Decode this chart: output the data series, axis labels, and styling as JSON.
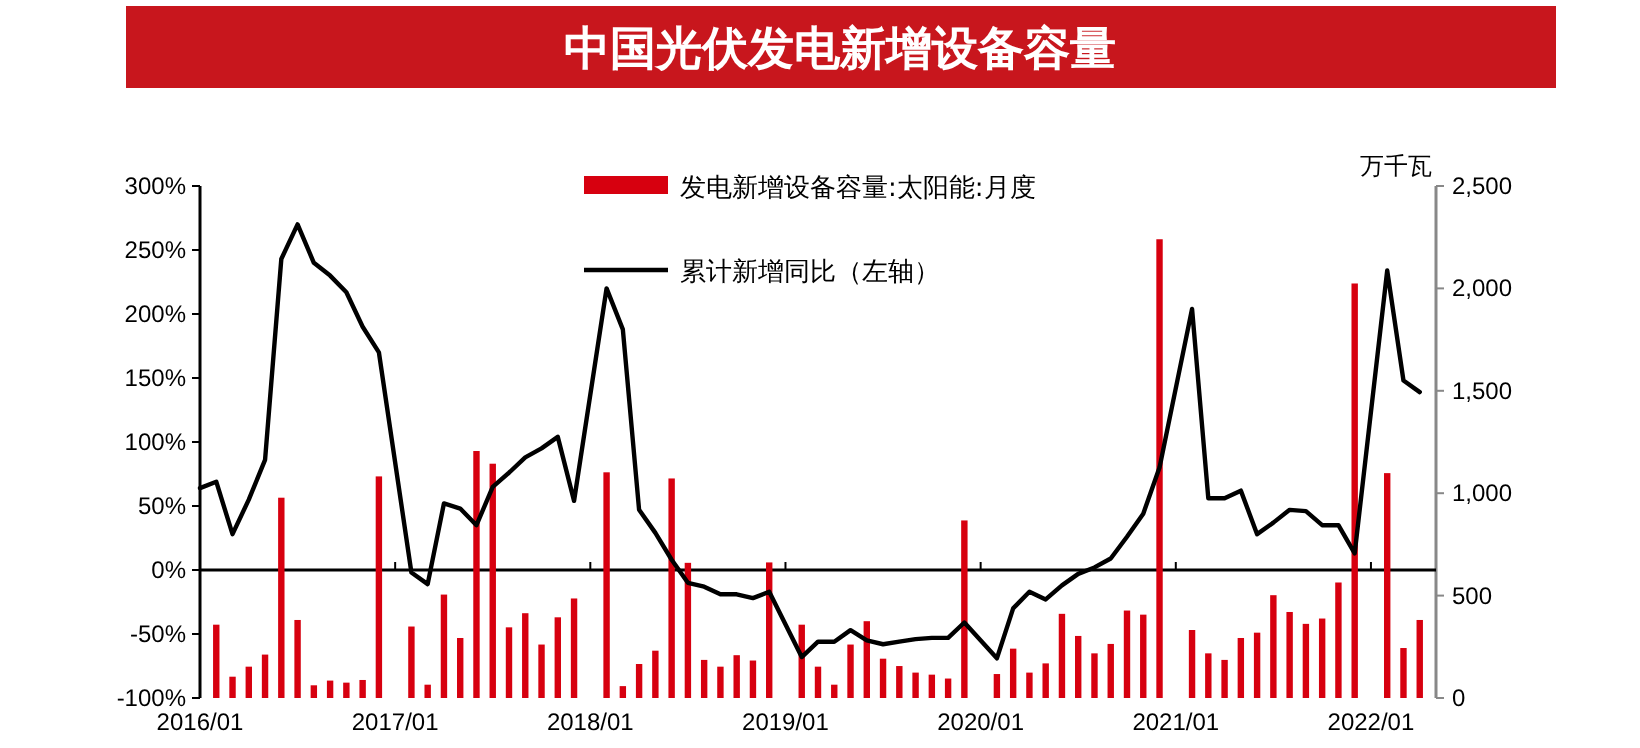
{
  "chart_data": {
    "type": "bar",
    "title": "中国光伏发电新增设备容量",
    "y2label": "万千瓦",
    "legend": "top",
    "xlim": [
      "2016-01",
      "2022-05"
    ],
    "xticks": [
      {
        "value": "2016-01",
        "label": "2016/01"
      },
      {
        "value": "2017-01",
        "label": "2017/01"
      },
      {
        "value": "2018-01",
        "label": "2018/01"
      },
      {
        "value": "2019-01",
        "label": "2019/01"
      },
      {
        "value": "2020-01",
        "label": "2020/01"
      },
      {
        "value": "2021-01",
        "label": "2021/01"
      },
      {
        "value": "2022-01",
        "label": "2022/01"
      }
    ],
    "ylim": [
      -100,
      300
    ],
    "yticks": [
      {
        "value": -100,
        "label": "-100%"
      },
      {
        "value": -50,
        "label": "-50%"
      },
      {
        "value": 0,
        "label": "0%"
      },
      {
        "value": 50,
        "label": "50%"
      },
      {
        "value": 100,
        "label": "100%"
      },
      {
        "value": 150,
        "label": "150%"
      },
      {
        "value": 200,
        "label": "200%"
      },
      {
        "value": 250,
        "label": "250%"
      },
      {
        "value": 300,
        "label": "300%"
      }
    ],
    "y2lim": [
      0,
      2500
    ],
    "y2ticks": [
      0,
      500,
      {
        "value": 1000,
        "label": "1,000"
      },
      {
        "value": 1500,
        "label": "1,500"
      },
      {
        "value": 2000,
        "label": "2,000"
      },
      {
        "value": 2500,
        "label": "2,500"
      }
    ],
    "ref_lines": [
      {
        "axis": "y",
        "value": 0,
        "color": "#000000"
      }
    ],
    "x": [
      "2016-02",
      "2016-03",
      "2016-04",
      "2016-05",
      "2016-06",
      "2016-07",
      "2016-08",
      "2016-09",
      "2016-10",
      "2016-11",
      "2016-12",
      "2017-02",
      "2017-03",
      "2017-04",
      "2017-05",
      "2017-06",
      "2017-07",
      "2017-08",
      "2017-09",
      "2017-10",
      "2017-11",
      "2017-12",
      "2018-02",
      "2018-03",
      "2018-04",
      "2018-05",
      "2018-06",
      "2018-07",
      "2018-08",
      "2018-09",
      "2018-10",
      "2018-11",
      "2018-12",
      "2019-02",
      "2019-03",
      "2019-04",
      "2019-05",
      "2019-06",
      "2019-07",
      "2019-08",
      "2019-09",
      "2019-10",
      "2019-11",
      "2019-12",
      "2020-02",
      "2020-03",
      "2020-04",
      "2020-05",
      "2020-06",
      "2020-07",
      "2020-08",
      "2020-09",
      "2020-10",
      "2020-11",
      "2020-12",
      "2021-02",
      "2021-03",
      "2021-04",
      "2021-05",
      "2021-06",
      "2021-07",
      "2021-08",
      "2021-09",
      "2021-10",
      "2021-11",
      "2021-12",
      "2022-02",
      "2022-03",
      "2022-04"
    ],
    "series": [
      {
        "name": "发电新增设备容量:太阳能:月度",
        "axis": "y2",
        "color": "#d7000f",
        "values": [
          358,
          104,
          153,
          212,
          978,
          381,
          62,
          85,
          75,
          88,
          1082,
          349,
          65,
          505,
          293,
          1206,
          1144,
          345,
          414,
          261,
          394,
          486,
          1102,
          58,
          166,
          231,
          1072,
          660,
          186,
          153,
          209,
          183,
          662,
          358,
          153,
          65,
          261,
          375,
          192,
          156,
          124,
          114,
          95,
          867,
          117,
          241,
          124,
          169,
          411,
          303,
          218,
          264,
          427,
          407,
          2240,
          332,
          218,
          186,
          293,
          319,
          502,
          420,
          362,
          388,
          564,
          2024,
          1098,
          244,
          381
        ]
      },
      {
        "name": "累计新增同比（左轴）",
        "type": "line",
        "axis": "y",
        "color": "#000000",
        "x": [
          "2016-01",
          "2016-02",
          "2016-03",
          "2016-04",
          "2016-05",
          "2016-06",
          "2016-07",
          "2016-08",
          "2016-09",
          "2016-10",
          "2016-11",
          "2016-12",
          "2017-02",
          "2017-03",
          "2017-04",
          "2017-05",
          "2017-06",
          "2017-07",
          "2017-08",
          "2017-09",
          "2017-10",
          "2017-11",
          "2017-12",
          "2018-02",
          "2018-03",
          "2018-04",
          "2018-05",
          "2018-06",
          "2018-07",
          "2018-08",
          "2018-09",
          "2018-10",
          "2018-11",
          "2018-12",
          "2019-02",
          "2019-03",
          "2019-04",
          "2019-05",
          "2019-06",
          "2019-07",
          "2019-08",
          "2019-09",
          "2019-10",
          "2019-11",
          "2019-12",
          "2020-02",
          "2020-03",
          "2020-04",
          "2020-05",
          "2020-06",
          "2020-07",
          "2020-08",
          "2020-09",
          "2020-10",
          "2020-11",
          "2020-12",
          "2021-02",
          "2021-03",
          "2021-04",
          "2021-05",
          "2021-06",
          "2021-07",
          "2021-08",
          "2021-09",
          "2021-10",
          "2021-11",
          "2021-12",
          "2022-02",
          "2022-03",
          "2022-04"
        ],
        "values": [
          64,
          69,
          28,
          55,
          86,
          243,
          270,
          240,
          230,
          217,
          190,
          170,
          -2,
          -11,
          52,
          48,
          35,
          65,
          76,
          88,
          95,
          104,
          54,
          220,
          188,
          47,
          29,
          8,
          -10,
          -13,
          -19,
          -19,
          -22,
          -17,
          -68,
          -56,
          -56,
          -47,
          -55,
          -58,
          -56,
          -54,
          -53,
          -53,
          -41,
          -69,
          -30,
          -17,
          -23,
          -12,
          -3,
          2,
          9,
          26,
          44,
          80,
          204,
          56,
          56,
          62,
          28,
          37,
          47,
          46,
          35,
          35,
          13,
          234,
          148,
          139
        ]
      }
    ]
  }
}
